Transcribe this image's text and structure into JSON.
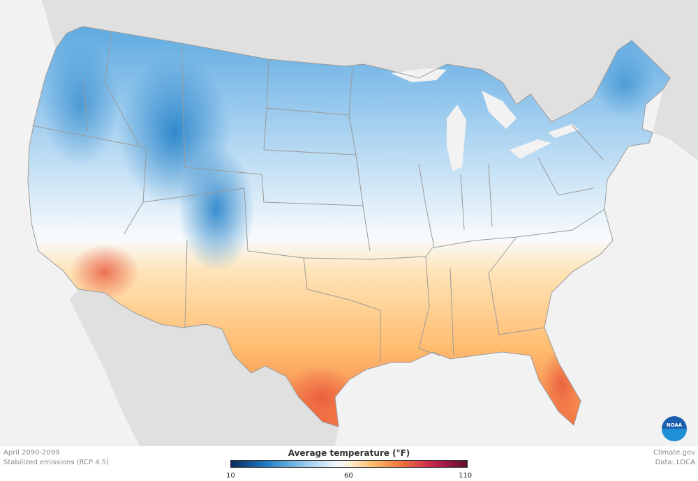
{
  "map": {
    "caption_period": "April 2090-2099",
    "caption_scenario": "Stabilized emissions (RCP 4.5)",
    "credit_site": "Climate.gov",
    "credit_data": "Data: LOCA",
    "logo_text": "NOAA"
  },
  "legend": {
    "title": "Average temperature (°F)",
    "min_label": "10",
    "mid_label": "60",
    "max_label": "110",
    "gradient_stops": [
      {
        "value": 10,
        "color": "#0b2a5e"
      },
      {
        "value": 25,
        "color": "#1e7cc4"
      },
      {
        "value": 40,
        "color": "#8cc4ea"
      },
      {
        "value": 55,
        "color": "#f4f8fc"
      },
      {
        "value": 60,
        "color": "#fff2d6"
      },
      {
        "value": 70,
        "color": "#ffbd6b"
      },
      {
        "value": 82,
        "color": "#f2743e"
      },
      {
        "value": 95,
        "color": "#c9254f"
      },
      {
        "value": 110,
        "color": "#5e0d30"
      }
    ]
  },
  "colors": {
    "land_background": "#e0e0e0",
    "water": "#f2f2f2",
    "border": "#9a9a9a"
  }
}
